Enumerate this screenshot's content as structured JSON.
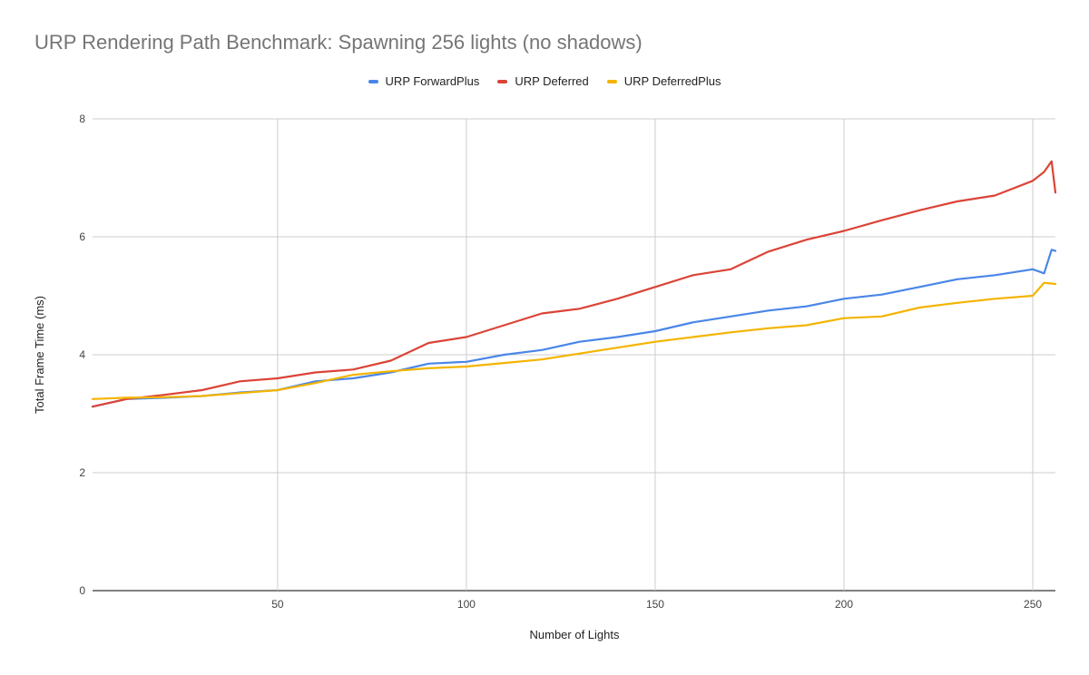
{
  "chart_data": {
    "type": "line",
    "title": "URP Rendering Path Benchmark: Spawning 256 lights (no shadows)",
    "xlabel": "Number of Lights",
    "ylabel": "Total Frame Time (ms)",
    "xlim": [
      1,
      256
    ],
    "ylim": [
      0,
      8
    ],
    "x_ticks": [
      50,
      100,
      150,
      200,
      250
    ],
    "y_ticks": [
      0,
      2,
      4,
      6,
      8
    ],
    "grid": true,
    "legend_position": "top",
    "series": [
      {
        "name": "URP ForwardPlus",
        "color": "#4a86e8",
        "points": [
          [
            1,
            3.12
          ],
          [
            10,
            3.25
          ],
          [
            20,
            3.27
          ],
          [
            30,
            3.3
          ],
          [
            40,
            3.36
          ],
          [
            50,
            3.4
          ],
          [
            60,
            3.55
          ],
          [
            70,
            3.6
          ],
          [
            80,
            3.7
          ],
          [
            90,
            3.85
          ],
          [
            100,
            3.88
          ],
          [
            110,
            4.0
          ],
          [
            120,
            4.08
          ],
          [
            130,
            4.22
          ],
          [
            140,
            4.3
          ],
          [
            150,
            4.4
          ],
          [
            160,
            4.55
          ],
          [
            170,
            4.65
          ],
          [
            180,
            4.75
          ],
          [
            190,
            4.82
          ],
          [
            200,
            4.95
          ],
          [
            210,
            5.02
          ],
          [
            220,
            5.15
          ],
          [
            230,
            5.28
          ],
          [
            240,
            5.35
          ],
          [
            250,
            5.45
          ],
          [
            253,
            5.38
          ],
          [
            255,
            5.78
          ],
          [
            256,
            5.76
          ]
        ]
      },
      {
        "name": "URP Deferred",
        "color": "#db4437",
        "points": [
          [
            1,
            3.12
          ],
          [
            10,
            3.25
          ],
          [
            20,
            3.32
          ],
          [
            30,
            3.4
          ],
          [
            40,
            3.55
          ],
          [
            50,
            3.6
          ],
          [
            60,
            3.7
          ],
          [
            70,
            3.75
          ],
          [
            80,
            3.9
          ],
          [
            90,
            4.2
          ],
          [
            100,
            4.3
          ],
          [
            110,
            4.5
          ],
          [
            120,
            4.7
          ],
          [
            130,
            4.78
          ],
          [
            140,
            4.95
          ],
          [
            150,
            5.15
          ],
          [
            160,
            5.35
          ],
          [
            170,
            5.45
          ],
          [
            180,
            5.75
          ],
          [
            190,
            5.95
          ],
          [
            200,
            6.1
          ],
          [
            210,
            6.28
          ],
          [
            220,
            6.45
          ],
          [
            230,
            6.6
          ],
          [
            240,
            6.7
          ],
          [
            250,
            6.95
          ],
          [
            253,
            7.1
          ],
          [
            255,
            7.28
          ],
          [
            256,
            6.75
          ]
        ]
      },
      {
        "name": "URP DeferredPlus",
        "color": "#f4b400",
        "points": [
          [
            1,
            3.25
          ],
          [
            10,
            3.27
          ],
          [
            20,
            3.28
          ],
          [
            30,
            3.3
          ],
          [
            40,
            3.35
          ],
          [
            50,
            3.4
          ],
          [
            60,
            3.52
          ],
          [
            70,
            3.66
          ],
          [
            80,
            3.72
          ],
          [
            90,
            3.77
          ],
          [
            100,
            3.8
          ],
          [
            110,
            3.86
          ],
          [
            120,
            3.92
          ],
          [
            130,
            4.02
          ],
          [
            140,
            4.12
          ],
          [
            150,
            4.22
          ],
          [
            160,
            4.3
          ],
          [
            170,
            4.38
          ],
          [
            180,
            4.45
          ],
          [
            190,
            4.5
          ],
          [
            200,
            4.62
          ],
          [
            210,
            4.65
          ],
          [
            220,
            4.8
          ],
          [
            230,
            4.88
          ],
          [
            240,
            4.95
          ],
          [
            250,
            5.0
          ],
          [
            253,
            5.22
          ],
          [
            256,
            5.2
          ]
        ]
      }
    ]
  }
}
